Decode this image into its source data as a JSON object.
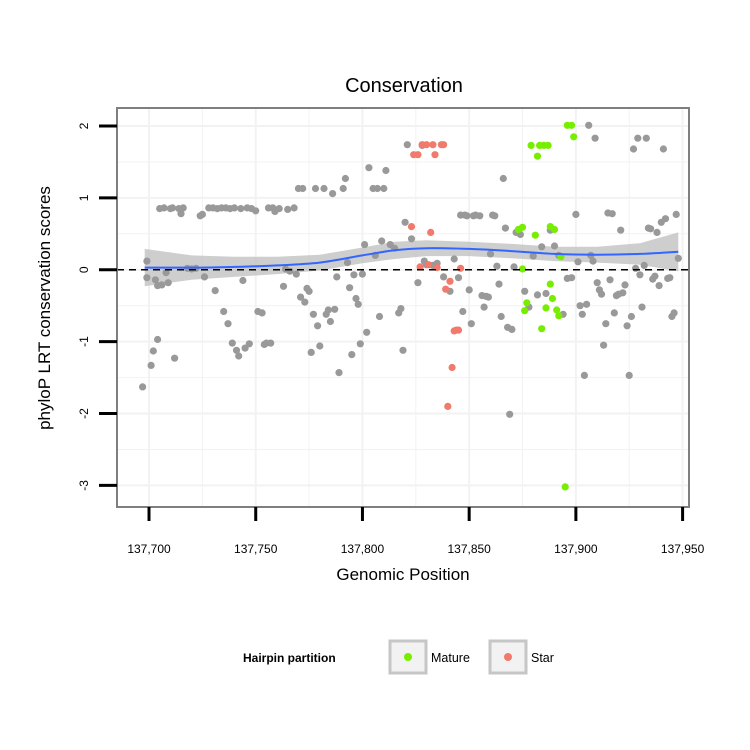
{
  "chart_data": {
    "type": "scatter",
    "title": "Conservation",
    "xlabel": "Genomic Position",
    "ylabel": "phyloP LRT conservation scores",
    "xlim": [
      137685,
      137953
    ],
    "ylim": [
      -3.3,
      2.25
    ],
    "x_ticks": [
      137700,
      137750,
      137800,
      137850,
      137900,
      137950
    ],
    "x_tick_labels": [
      "137,700",
      "137,750",
      "137,800",
      "137,850",
      "137,900",
      "137,950"
    ],
    "y_ticks": [
      -3,
      -2,
      -1,
      0,
      1,
      2
    ],
    "y_tick_labels": [
      "-3",
      "-2",
      "-1",
      "0",
      "1",
      "2"
    ],
    "reference_line": {
      "y": 0,
      "style": "dashed",
      "color": "#000000"
    },
    "colors": {
      "Other": "#999999",
      "Mature": "#77ee00",
      "Star": "#f07a6c",
      "smooth_line": "#3366ff",
      "smooth_band": "#bebebe",
      "panel_border": "#7f7f7f",
      "grid": "#f2f2f2"
    },
    "legend": {
      "title": "Hairpin partition",
      "position": "bottom",
      "entries": [
        {
          "label": "Mature",
          "series": "Mature"
        },
        {
          "label": "Star",
          "series": "Star"
        }
      ]
    },
    "smooth": {
      "x": [
        137698,
        137720,
        137740,
        137760,
        137780,
        137800,
        137815,
        137830,
        137850,
        137870,
        137890,
        137910,
        137930,
        137948
      ],
      "y": [
        0.03,
        0.03,
        0.04,
        0.06,
        0.1,
        0.2,
        0.27,
        0.3,
        0.29,
        0.26,
        0.22,
        0.21,
        0.22,
        0.25
      ],
      "lower": [
        -0.23,
        -0.14,
        -0.1,
        -0.06,
        -0.01,
        0.09,
        0.15,
        0.19,
        0.19,
        0.16,
        0.12,
        0.1,
        0.07,
        -0.02
      ],
      "upper": [
        0.29,
        0.2,
        0.18,
        0.18,
        0.21,
        0.31,
        0.39,
        0.41,
        0.39,
        0.36,
        0.32,
        0.32,
        0.37,
        0.52
      ]
    },
    "series": [
      {
        "name": "Other",
        "points": [
          [
            137697,
            -1.63
          ],
          [
            137699,
            0.12
          ],
          [
            137699,
            -0.11
          ],
          [
            137701,
            -1.33
          ],
          [
            137702,
            -1.13
          ],
          [
            137703,
            -0.14
          ],
          [
            137704,
            -0.97
          ],
          [
            137704,
            -0.22
          ],
          [
            137705,
            0.85
          ],
          [
            137706,
            -0.21
          ],
          [
            137707,
            0.86
          ],
          [
            137708,
            -0.04
          ],
          [
            137709,
            -0.18
          ],
          [
            137710,
            0.85
          ],
          [
            137711,
            0.86
          ],
          [
            137712,
            -1.23
          ],
          [
            137714,
            0.85
          ],
          [
            137715,
            0.78
          ],
          [
            137716,
            0.86
          ],
          [
            137718,
            0.02
          ],
          [
            137720,
            0.01
          ],
          [
            137722,
            0.02
          ],
          [
            137724,
            0.75
          ],
          [
            137725,
            0.77
          ],
          [
            137726,
            -0.1
          ],
          [
            137728,
            0.86
          ],
          [
            137730,
            0.86
          ],
          [
            137731,
            -0.29
          ],
          [
            137732,
            0.85
          ],
          [
            137734,
            0.86
          ],
          [
            137735,
            -0.58
          ],
          [
            137736,
            0.86
          ],
          [
            137737,
            -0.75
          ],
          [
            137738,
            0.85
          ],
          [
            137739,
            -1.02
          ],
          [
            137740,
            0.86
          ],
          [
            137741,
            -1.12
          ],
          [
            137742,
            -1.2
          ],
          [
            137743,
            0.85
          ],
          [
            137744,
            -0.15
          ],
          [
            137745,
            -1.09
          ],
          [
            137746,
            0.86
          ],
          [
            137747,
            -1.03
          ],
          [
            137748,
            0.85
          ],
          [
            137750,
            0.82
          ],
          [
            137751,
            -0.58
          ],
          [
            137753,
            -0.6
          ],
          [
            137754,
            -1.04
          ],
          [
            137755,
            -1.02
          ],
          [
            137756,
            0.86
          ],
          [
            137757,
            -1.02
          ],
          [
            137758,
            0.86
          ],
          [
            137759,
            0.81
          ],
          [
            137761,
            0.85
          ],
          [
            137763,
            -0.23
          ],
          [
            137764,
            0.01
          ],
          [
            137765,
            0.84
          ],
          [
            137766,
            -0.02
          ],
          [
            137768,
            0.86
          ],
          [
            137769,
            -0.06
          ],
          [
            137770,
            1.13
          ],
          [
            137771,
            -0.38
          ],
          [
            137772,
            1.13
          ],
          [
            137773,
            -0.45
          ],
          [
            137774,
            -0.26
          ],
          [
            137775,
            -0.3
          ],
          [
            137776,
            -1.15
          ],
          [
            137777,
            -0.62
          ],
          [
            137778,
            1.13
          ],
          [
            137779,
            -0.78
          ],
          [
            137780,
            -1.06
          ],
          [
            137782,
            1.13
          ],
          [
            137783,
            -0.62
          ],
          [
            137784,
            -0.56
          ],
          [
            137785,
            -0.72
          ],
          [
            137786,
            1.06
          ],
          [
            137787,
            -0.55
          ],
          [
            137788,
            -0.1
          ],
          [
            137789,
            -1.43
          ],
          [
            137791,
            1.13
          ],
          [
            137792,
            1.27
          ],
          [
            137793,
            0.1
          ],
          [
            137794,
            -0.25
          ],
          [
            137795,
            -1.18
          ],
          [
            137796,
            -0.07
          ],
          [
            137797,
            -0.4
          ],
          [
            137798,
            -0.48
          ],
          [
            137799,
            -1.03
          ],
          [
            137800,
            -0.06
          ],
          [
            137801,
            0.35
          ],
          [
            137802,
            -0.87
          ],
          [
            137803,
            1.42
          ],
          [
            137805,
            1.13
          ],
          [
            137806,
            0.2
          ],
          [
            137807,
            1.13
          ],
          [
            137808,
            -0.65
          ],
          [
            137809,
            0.4
          ],
          [
            137810,
            1.13
          ],
          [
            137811,
            1.38
          ],
          [
            137813,
            0.35
          ],
          [
            137815,
            0.3
          ],
          [
            137817,
            -0.6
          ],
          [
            137818,
            -0.54
          ],
          [
            137819,
            -1.12
          ],
          [
            137820,
            0.66
          ],
          [
            137821,
            1.74
          ],
          [
            137823,
            0.43
          ],
          [
            137826,
            -0.18
          ],
          [
            137828,
            1.73
          ],
          [
            137829,
            0.12
          ],
          [
            137830,
            0.07
          ],
          [
            137833,
            0.06
          ],
          [
            137835,
            0.09
          ],
          [
            137838,
            -0.1
          ],
          [
            137841,
            -0.3
          ],
          [
            137843,
            0.15
          ],
          [
            137845,
            -0.11
          ],
          [
            137846,
            0.76
          ],
          [
            137847,
            -0.58
          ],
          [
            137848,
            0.76
          ],
          [
            137849,
            0.75
          ],
          [
            137850,
            -0.28
          ],
          [
            137851,
            -0.75
          ],
          [
            137852,
            0.75
          ],
          [
            137853,
            0.76
          ],
          [
            137855,
            0.75
          ],
          [
            137856,
            -0.36
          ],
          [
            137857,
            -0.52
          ],
          [
            137858,
            -0.37
          ],
          [
            137859,
            -0.38
          ],
          [
            137860,
            0.22
          ],
          [
            137861,
            0.76
          ],
          [
            137862,
            0.75
          ],
          [
            137863,
            0.05
          ],
          [
            137864,
            -0.2
          ],
          [
            137865,
            -0.65
          ],
          [
            137866,
            1.27
          ],
          [
            137867,
            0.58
          ],
          [
            137868,
            -0.8
          ],
          [
            137869,
            -2.01
          ],
          [
            137870,
            -0.83
          ],
          [
            137871,
            0.04
          ],
          [
            137872,
            0.52
          ],
          [
            137874,
            0.49
          ],
          [
            137876,
            -0.3
          ],
          [
            137878,
            -0.52
          ],
          [
            137880,
            0.19
          ],
          [
            137882,
            -0.35
          ],
          [
            137884,
            0.32
          ],
          [
            137886,
            -0.33
          ],
          [
            137888,
            0.55
          ],
          [
            137890,
            0.33
          ],
          [
            137892,
            0.2
          ],
          [
            137894,
            -0.62
          ],
          [
            137896,
            -0.12
          ],
          [
            137898,
            -0.11
          ],
          [
            137900,
            0.77
          ],
          [
            137901,
            0.11
          ],
          [
            137902,
            -0.5
          ],
          [
            137903,
            -0.62
          ],
          [
            137904,
            -1.47
          ],
          [
            137905,
            -0.48
          ],
          [
            137906,
            2.01
          ],
          [
            137907,
            0.2
          ],
          [
            137908,
            0.12
          ],
          [
            137909,
            1.83
          ],
          [
            137910,
            -0.18
          ],
          [
            137911,
            -0.28
          ],
          [
            137912,
            -0.34
          ],
          [
            137913,
            -1.05
          ],
          [
            137914,
            -0.75
          ],
          [
            137915,
            0.79
          ],
          [
            137916,
            -0.14
          ],
          [
            137917,
            0.78
          ],
          [
            137918,
            -0.6
          ],
          [
            137919,
            -0.36
          ],
          [
            137920,
            -0.34
          ],
          [
            137921,
            0.55
          ],
          [
            137922,
            -0.32
          ],
          [
            137923,
            -0.21
          ],
          [
            137924,
            -0.78
          ],
          [
            137925,
            -1.47
          ],
          [
            137926,
            -0.65
          ],
          [
            137927,
            1.68
          ],
          [
            137928,
            0.02
          ],
          [
            137929,
            1.83
          ],
          [
            137930,
            -0.07
          ],
          [
            137931,
            -0.52
          ],
          [
            137932,
            0.06
          ],
          [
            137933,
            1.83
          ],
          [
            137934,
            0.58
          ],
          [
            137935,
            0.57
          ],
          [
            137936,
            -0.13
          ],
          [
            137937,
            -0.09
          ],
          [
            137938,
            0.52
          ],
          [
            137939,
            -0.22
          ],
          [
            137940,
            0.66
          ],
          [
            137941,
            1.68
          ],
          [
            137942,
            0.71
          ],
          [
            137943,
            -0.12
          ],
          [
            137944,
            -0.11
          ],
          [
            137945,
            -0.65
          ],
          [
            137946,
            -0.6
          ],
          [
            137947,
            0.77
          ],
          [
            137948,
            0.16
          ]
        ]
      },
      {
        "name": "Mature",
        "points": [
          [
            137873,
            0.56
          ],
          [
            137875,
            0.59
          ],
          [
            137875,
            0.01
          ],
          [
            137876,
            -0.57
          ],
          [
            137877,
            -0.46
          ],
          [
            137879,
            1.73
          ],
          [
            137881,
            0.48
          ],
          [
            137882,
            1.58
          ],
          [
            137883,
            1.73
          ],
          [
            137884,
            -0.82
          ],
          [
            137885,
            1.73
          ],
          [
            137886,
            -0.53
          ],
          [
            137887,
            1.73
          ],
          [
            137888,
            0.6
          ],
          [
            137888,
            -0.2
          ],
          [
            137889,
            -0.4
          ],
          [
            137890,
            0.56
          ],
          [
            137891,
            -0.56
          ],
          [
            137892,
            -0.64
          ],
          [
            137893,
            0.18
          ],
          [
            137895,
            -3.02
          ],
          [
            137896,
            2.01
          ],
          [
            137898,
            2.01
          ],
          [
            137899,
            1.85
          ]
        ]
      },
      {
        "name": "Star",
        "points": [
          [
            137823,
            0.6
          ],
          [
            137824,
            1.6
          ],
          [
            137826,
            1.6
          ],
          [
            137827,
            0.04
          ],
          [
            137828,
            1.74
          ],
          [
            137830,
            1.74
          ],
          [
            137831,
            0.07
          ],
          [
            137832,
            0.52
          ],
          [
            137833,
            1.74
          ],
          [
            137834,
            1.6
          ],
          [
            137835,
            0.03
          ],
          [
            137837,
            1.74
          ],
          [
            137838,
            1.74
          ],
          [
            137839,
            -0.27
          ],
          [
            137840,
            -1.9
          ],
          [
            137841,
            -0.16
          ],
          [
            137842,
            -1.36
          ],
          [
            137843,
            -0.85
          ],
          [
            137844,
            -0.84
          ],
          [
            137845,
            -0.84
          ],
          [
            137846,
            0.02
          ]
        ]
      }
    ]
  }
}
